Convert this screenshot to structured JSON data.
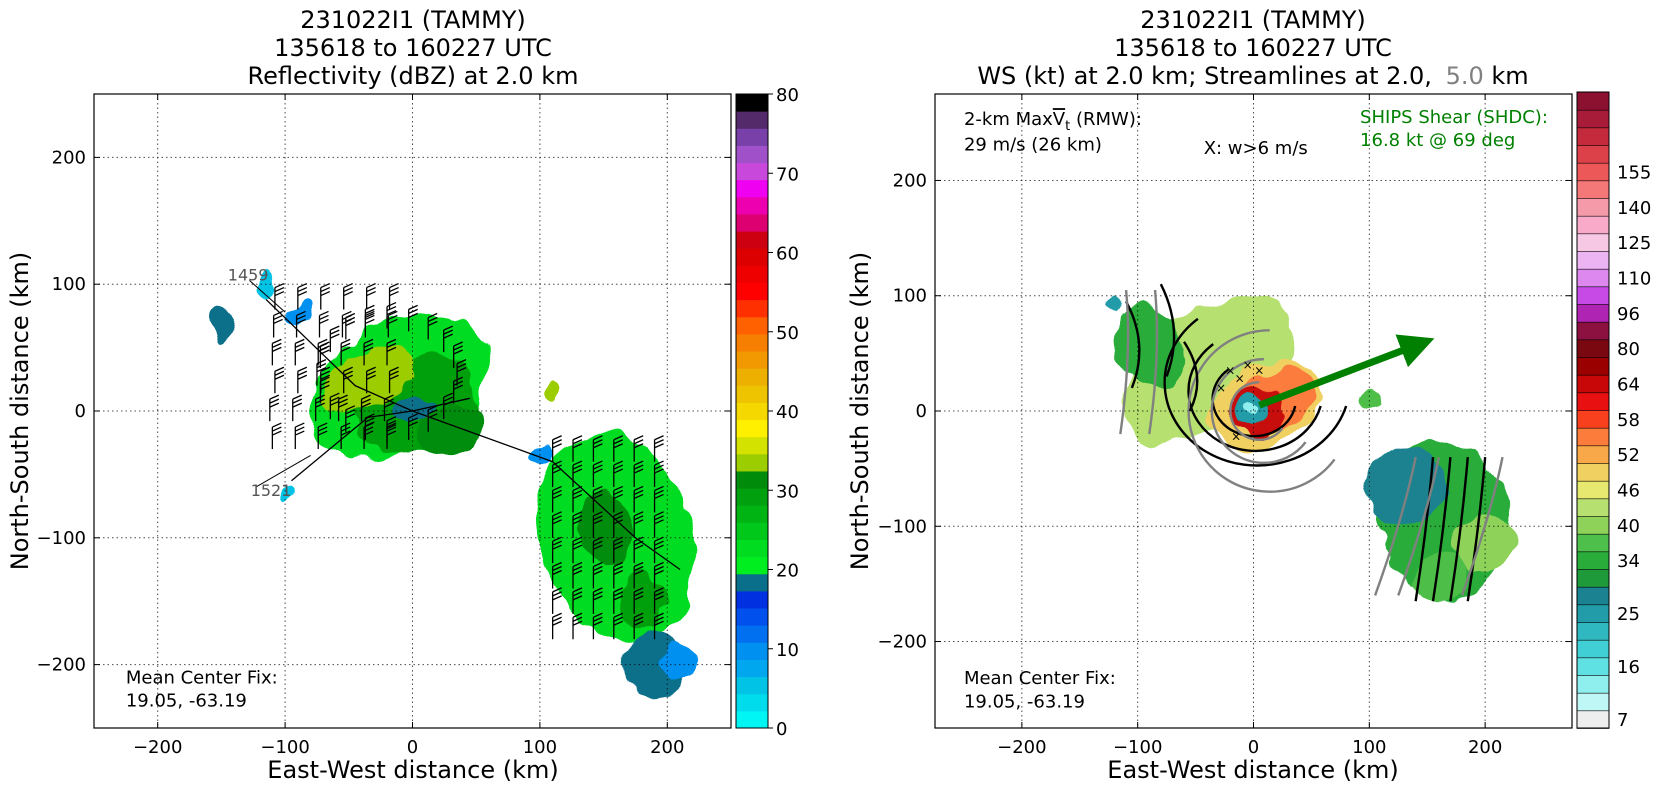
{
  "chart_data": [
    {
      "type": "heatmap",
      "title_lines": [
        "231022I1 (TAMMY)",
        "135618 to 160227 UTC",
        "Reflectivity (dBZ) at 2.0 km"
      ],
      "xlabel": "East-West distance (km)",
      "ylabel": "North-South distance (km)",
      "xlim": [
        -250,
        250
      ],
      "ylim": [
        -250,
        250
      ],
      "xticks": [
        -200,
        -100,
        0,
        100,
        200
      ],
      "yticks": [
        -200,
        -100,
        0,
        100,
        200
      ],
      "xtick_labels": [
        "−200",
        "−100",
        "0",
        "100",
        "200"
      ],
      "ytick_labels": [
        "−200",
        "−100",
        "0",
        "100",
        "200"
      ],
      "grid": true,
      "colorbar": {
        "min": 0,
        "max": 80,
        "step": 2.5,
        "tick_values": [
          0,
          10,
          20,
          30,
          40,
          50,
          60,
          70,
          80
        ],
        "tick_labels": [
          "0",
          "10",
          "20",
          "30",
          "40",
          "50",
          "60",
          "70",
          "80"
        ],
        "colors": [
          "#00f5f5",
          "#00dcec",
          "#00c3e6",
          "#00a6ee",
          "#0090f0",
          "#0070f0",
          "#0050ee",
          "#0030e0",
          "#0a6f8a",
          "#00ee20",
          "#00dc20",
          "#00c81a",
          "#00b414",
          "#00a00f",
          "#008c0a",
          "#9ccd00",
          "#d4e200",
          "#fff000",
          "#f4d800",
          "#eec400",
          "#eeb000",
          "#f29800",
          "#f67e00",
          "#ff6000",
          "#ff3000",
          "#ff0000",
          "#ee0000",
          "#dc0000",
          "#cc0010",
          "#dd0070",
          "#ec00b0",
          "#f000f0",
          "#c848dc",
          "#a050c8",
          "#7840a8",
          "#542a6a",
          "#000000"
        ]
      },
      "annotations": [
        {
          "text": "1459",
          "x": -145,
          "y": 103
        },
        {
          "text": "1521",
          "x": -127,
          "y": -67
        },
        {
          "text": "Mean Center Fix:",
          "x": -225,
          "y": -215
        },
        {
          "text": "19.05, -63.19",
          "x": -225,
          "y": -233
        }
      ],
      "echoes": [
        {
          "x": -10,
          "y": 20,
          "rx": 75,
          "ry": 50,
          "rot": -28,
          "value": 25
        },
        {
          "x": 3,
          "y": 5,
          "rx": 48,
          "ry": 36,
          "rot": -25,
          "value": 34
        },
        {
          "x": -35,
          "y": 25,
          "rx": 40,
          "ry": 22,
          "rot": -30,
          "value": 38
        },
        {
          "x": 30,
          "y": -15,
          "rx": 25,
          "ry": 18,
          "rot": -20,
          "value": 37
        },
        {
          "x": 0,
          "y": 0,
          "rx": 14,
          "ry": 11,
          "rot": 0,
          "value": 20
        },
        {
          "x": -90,
          "y": 75,
          "rx": 12,
          "ry": 8,
          "rot": -30,
          "value": 12
        },
        {
          "x": 100,
          "y": -35,
          "rx": 14,
          "ry": 8,
          "rot": -30,
          "value": 12
        },
        {
          "x": 160,
          "y": -100,
          "rx": 60,
          "ry": 85,
          "rot": -18,
          "value": 26
        },
        {
          "x": 150,
          "y": -90,
          "rx": 22,
          "ry": 30,
          "rot": -20,
          "value": 35
        },
        {
          "x": 180,
          "y": -150,
          "rx": 18,
          "ry": 22,
          "rot": -10,
          "value": 33
        },
        {
          "x": 190,
          "y": -200,
          "rx": 25,
          "ry": 25,
          "rot": 0,
          "value": 22
        },
        {
          "x": 210,
          "y": -195,
          "rx": 14,
          "ry": 14,
          "rot": 0,
          "value": 10
        },
        {
          "x": -150,
          "y": 70,
          "rx": 7,
          "ry": 16,
          "rot": 0,
          "value": 22
        },
        {
          "x": -115,
          "y": 100,
          "rx": 6,
          "ry": 8,
          "rot": 0,
          "value": 5
        },
        {
          "x": -100,
          "y": -65,
          "rx": 5,
          "ry": 5,
          "rot": 0,
          "value": 5
        },
        {
          "x": 110,
          "y": 18,
          "rx": 7,
          "ry": 10,
          "rot": 0,
          "value": 38
        }
      ],
      "flight_track": [
        [
          -115,
          88
        ],
        [
          -45,
          20
        ],
        [
          0,
          0
        ],
        [
          110,
          -40
        ],
        [
          175,
          -100
        ],
        [
          210,
          -125
        ]
      ],
      "flight_track_2": [
        [
          -95,
          -55
        ],
        [
          -35,
          -5
        ],
        [
          0,
          0
        ],
        [
          45,
          10
        ]
      ]
    },
    {
      "type": "heatmap",
      "title_lines": [
        "231022I1 (TAMMY)",
        "135618 to 160227 UTC"
      ],
      "title_line3_parts": [
        "WS (kt) at 2.0 km; Streamlines at 2.0,",
        "5.0",
        "km"
      ],
      "xlabel": "East-West distance (km)",
      "ylabel": "North-South distance (km)",
      "xlim": [
        -275,
        275
      ],
      "ylim": [
        -275,
        275
      ],
      "xticks": [
        -200,
        -100,
        0,
        100,
        200
      ],
      "yticks": [
        -200,
        -100,
        0,
        100,
        200
      ],
      "xtick_labels": [
        "−200",
        "−100",
        "0",
        "100",
        "200"
      ],
      "ytick_labels": [
        "−200",
        "−100",
        "0",
        "100",
        "200"
      ],
      "grid": true,
      "colorbar": {
        "tick_labels": [
          "7",
          "16",
          "25",
          "34",
          "40",
          "46",
          "52",
          "58",
          "64",
          "80",
          "96",
          "110",
          "125",
          "140",
          "155"
        ],
        "label_bins": [
          0,
          3,
          6,
          9,
          11,
          13,
          15,
          17,
          19,
          21,
          23,
          25,
          27,
          29,
          31
        ],
        "colors": [
          "#eeeeee",
          "#bff6f6",
          "#8feeee",
          "#5fe0e2",
          "#40cfd4",
          "#30b8c0",
          "#229ca8",
          "#1a8290",
          "#1e9a3a",
          "#2aac3a",
          "#4ebf4a",
          "#8ed25a",
          "#b6e070",
          "#e6e870",
          "#f0d060",
          "#f8a848",
          "#fc7c3c",
          "#f8401e",
          "#e81010",
          "#c80808",
          "#9a0000",
          "#7a0810",
          "#8c1040",
          "#b024b4",
          "#c84ae6",
          "#dc88ee",
          "#ecb4f2",
          "#f6c8e4",
          "#f8aac8",
          "#f49aa8",
          "#f47878",
          "#ec5858",
          "#dc4048",
          "#c42a3c",
          "#a81c3a",
          "#8c1030"
        ]
      },
      "info_text": [
        "2-km Max",
        "V",
        "t",
        " (RMW):",
        "29 m/s (26 km)"
      ],
      "w_text": "X: w>6 m/s",
      "shear_text": [
        "SHIPS Shear (SHDC):",
        "16.8 kt @ 69 deg"
      ],
      "shear_arrow": {
        "speed_kt": 16.8,
        "direction_deg": 69
      },
      "shear_color": "#008000",
      "stream_color_2km": "#000000",
      "stream_color_5km": "#808080",
      "annotations": [
        {
          "text": "Mean Center Fix:",
          "x": -250,
          "y": -237
        },
        {
          "text": "19.05, -63.19",
          "x": -250,
          "y": -257
        }
      ],
      "echoes": [
        {
          "x": -40,
          "y": 35,
          "rx": 85,
          "ry": 50,
          "rot": -35,
          "value": 42
        },
        {
          "x": -90,
          "y": 55,
          "rx": 28,
          "ry": 40,
          "rot": -30,
          "value": 35
        },
        {
          "x": 10,
          "y": 5,
          "rx": 52,
          "ry": 36,
          "rot": -20,
          "value": 48
        },
        {
          "x": 20,
          "y": 10,
          "rx": 36,
          "ry": 26,
          "rot": -20,
          "value": 56
        },
        {
          "x": 5,
          "y": 0,
          "rx": 22,
          "ry": 20,
          "rot": 0,
          "value": 64
        },
        {
          "x": 0,
          "y": 0,
          "rx": 12,
          "ry": 12,
          "rot": 0,
          "value": 25
        },
        {
          "x": -1,
          "y": -1,
          "rx": 5,
          "ry": 5,
          "rot": 0,
          "value": 12
        },
        {
          "x": 165,
          "y": -95,
          "rx": 55,
          "ry": 70,
          "rot": -10,
          "value": 34
        },
        {
          "x": 130,
          "y": -65,
          "rx": 35,
          "ry": 35,
          "rot": -10,
          "value": 28
        },
        {
          "x": 200,
          "y": -115,
          "rx": 30,
          "ry": 25,
          "rot": 0,
          "value": 40
        },
        {
          "x": 160,
          "y": -145,
          "rx": 25,
          "ry": 20,
          "rot": 0,
          "value": 38
        },
        {
          "x": -120,
          "y": 95,
          "rx": 7,
          "ry": 8,
          "rot": 0,
          "value": 25
        },
        {
          "x": 100,
          "y": 10,
          "rx": 5,
          "ry": 5,
          "rot": 0,
          "value": 36
        }
      ]
    }
  ]
}
